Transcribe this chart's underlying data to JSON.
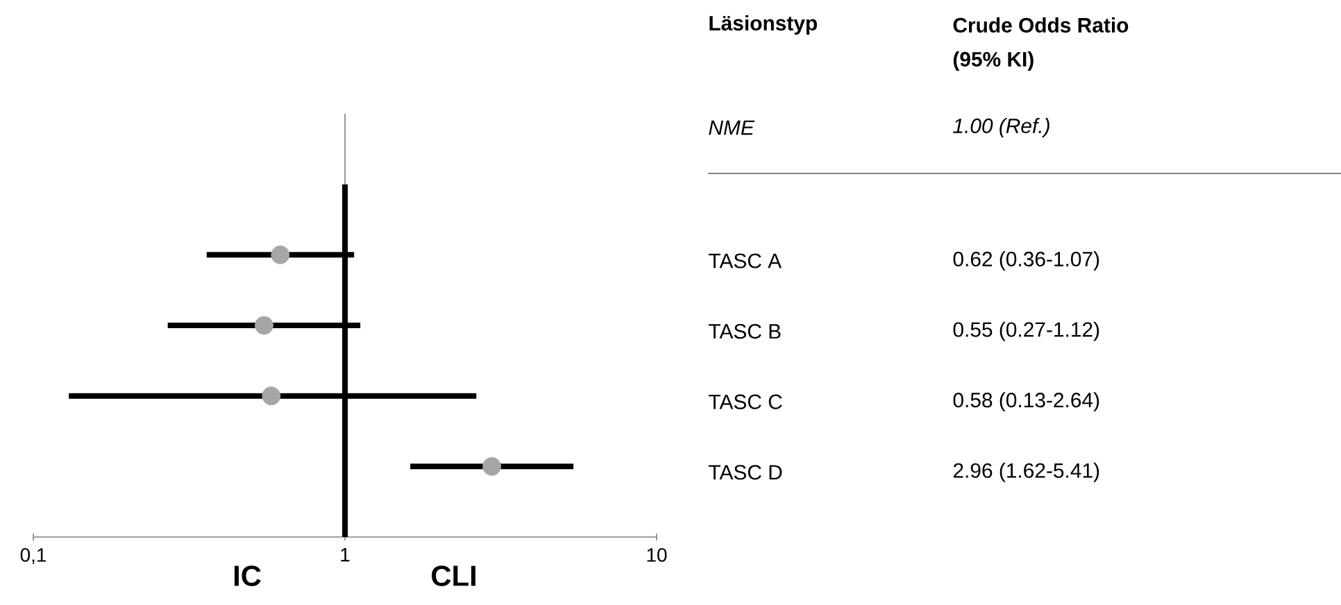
{
  "chart_data": {
    "type": "scatter",
    "orientation": "horizontal",
    "categories": [
      "TASC A",
      "TASC B",
      "TASC C",
      "TASC D"
    ],
    "values": [
      0.62,
      0.55,
      0.58,
      2.96
    ],
    "errors": [
      [
        0.36,
        1.07
      ],
      [
        0.27,
        1.12
      ],
      [
        0.13,
        2.64
      ],
      [
        1.62,
        5.41
      ]
    ],
    "value_labels": [
      "0.62 (0.36-1.07)",
      "0.55 (0.27-1.12)",
      "0.58 (0.13-2.64)",
      "2.96 (1.62-5.41)"
    ],
    "color": "#a6a6a6",
    "log": "x",
    "xlim": [
      0.1,
      10
    ],
    "xticks": [
      {
        "value": 0.1,
        "label": "0,1"
      },
      1,
      10
    ],
    "ref_lines": [
      {
        "axis": "x",
        "value": 1,
        "color": "#000000"
      }
    ],
    "annotations": [
      "Läsionstyp",
      "Crude Odds Ratio",
      "(95% KI)",
      "NME",
      "1.00 (Ref.)",
      "IC",
      "CLI"
    ],
    "grid": false
  }
}
